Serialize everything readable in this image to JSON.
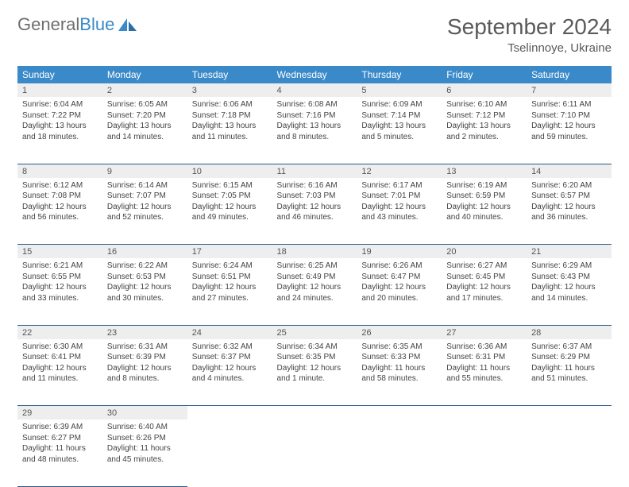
{
  "logo": {
    "text_gray": "General",
    "text_blue": "Blue"
  },
  "title": "September 2024",
  "location": "Tselinnoye, Ukraine",
  "day_headers": [
    "Sunday",
    "Monday",
    "Tuesday",
    "Wednesday",
    "Thursday",
    "Friday",
    "Saturday"
  ],
  "colors": {
    "header_bg": "#3a8ac9",
    "header_text": "#ffffff",
    "daynum_bg": "#eeeeee",
    "cell_border": "#2d5b86",
    "body_bg": "#ffffff",
    "text": "#444444"
  },
  "weeks": [
    [
      {
        "n": "1",
        "sunrise": "Sunrise: 6:04 AM",
        "sunset": "Sunset: 7:22 PM",
        "day1": "Daylight: 13 hours",
        "day2": "and 18 minutes."
      },
      {
        "n": "2",
        "sunrise": "Sunrise: 6:05 AM",
        "sunset": "Sunset: 7:20 PM",
        "day1": "Daylight: 13 hours",
        "day2": "and 14 minutes."
      },
      {
        "n": "3",
        "sunrise": "Sunrise: 6:06 AM",
        "sunset": "Sunset: 7:18 PM",
        "day1": "Daylight: 13 hours",
        "day2": "and 11 minutes."
      },
      {
        "n": "4",
        "sunrise": "Sunrise: 6:08 AM",
        "sunset": "Sunset: 7:16 PM",
        "day1": "Daylight: 13 hours",
        "day2": "and 8 minutes."
      },
      {
        "n": "5",
        "sunrise": "Sunrise: 6:09 AM",
        "sunset": "Sunset: 7:14 PM",
        "day1": "Daylight: 13 hours",
        "day2": "and 5 minutes."
      },
      {
        "n": "6",
        "sunrise": "Sunrise: 6:10 AM",
        "sunset": "Sunset: 7:12 PM",
        "day1": "Daylight: 13 hours",
        "day2": "and 2 minutes."
      },
      {
        "n": "7",
        "sunrise": "Sunrise: 6:11 AM",
        "sunset": "Sunset: 7:10 PM",
        "day1": "Daylight: 12 hours",
        "day2": "and 59 minutes."
      }
    ],
    [
      {
        "n": "8",
        "sunrise": "Sunrise: 6:12 AM",
        "sunset": "Sunset: 7:08 PM",
        "day1": "Daylight: 12 hours",
        "day2": "and 56 minutes."
      },
      {
        "n": "9",
        "sunrise": "Sunrise: 6:14 AM",
        "sunset": "Sunset: 7:07 PM",
        "day1": "Daylight: 12 hours",
        "day2": "and 52 minutes."
      },
      {
        "n": "10",
        "sunrise": "Sunrise: 6:15 AM",
        "sunset": "Sunset: 7:05 PM",
        "day1": "Daylight: 12 hours",
        "day2": "and 49 minutes."
      },
      {
        "n": "11",
        "sunrise": "Sunrise: 6:16 AM",
        "sunset": "Sunset: 7:03 PM",
        "day1": "Daylight: 12 hours",
        "day2": "and 46 minutes."
      },
      {
        "n": "12",
        "sunrise": "Sunrise: 6:17 AM",
        "sunset": "Sunset: 7:01 PM",
        "day1": "Daylight: 12 hours",
        "day2": "and 43 minutes."
      },
      {
        "n": "13",
        "sunrise": "Sunrise: 6:19 AM",
        "sunset": "Sunset: 6:59 PM",
        "day1": "Daylight: 12 hours",
        "day2": "and 40 minutes."
      },
      {
        "n": "14",
        "sunrise": "Sunrise: 6:20 AM",
        "sunset": "Sunset: 6:57 PM",
        "day1": "Daylight: 12 hours",
        "day2": "and 36 minutes."
      }
    ],
    [
      {
        "n": "15",
        "sunrise": "Sunrise: 6:21 AM",
        "sunset": "Sunset: 6:55 PM",
        "day1": "Daylight: 12 hours",
        "day2": "and 33 minutes."
      },
      {
        "n": "16",
        "sunrise": "Sunrise: 6:22 AM",
        "sunset": "Sunset: 6:53 PM",
        "day1": "Daylight: 12 hours",
        "day2": "and 30 minutes."
      },
      {
        "n": "17",
        "sunrise": "Sunrise: 6:24 AM",
        "sunset": "Sunset: 6:51 PM",
        "day1": "Daylight: 12 hours",
        "day2": "and 27 minutes."
      },
      {
        "n": "18",
        "sunrise": "Sunrise: 6:25 AM",
        "sunset": "Sunset: 6:49 PM",
        "day1": "Daylight: 12 hours",
        "day2": "and 24 minutes."
      },
      {
        "n": "19",
        "sunrise": "Sunrise: 6:26 AM",
        "sunset": "Sunset: 6:47 PM",
        "day1": "Daylight: 12 hours",
        "day2": "and 20 minutes."
      },
      {
        "n": "20",
        "sunrise": "Sunrise: 6:27 AM",
        "sunset": "Sunset: 6:45 PM",
        "day1": "Daylight: 12 hours",
        "day2": "and 17 minutes."
      },
      {
        "n": "21",
        "sunrise": "Sunrise: 6:29 AM",
        "sunset": "Sunset: 6:43 PM",
        "day1": "Daylight: 12 hours",
        "day2": "and 14 minutes."
      }
    ],
    [
      {
        "n": "22",
        "sunrise": "Sunrise: 6:30 AM",
        "sunset": "Sunset: 6:41 PM",
        "day1": "Daylight: 12 hours",
        "day2": "and 11 minutes."
      },
      {
        "n": "23",
        "sunrise": "Sunrise: 6:31 AM",
        "sunset": "Sunset: 6:39 PM",
        "day1": "Daylight: 12 hours",
        "day2": "and 8 minutes."
      },
      {
        "n": "24",
        "sunrise": "Sunrise: 6:32 AM",
        "sunset": "Sunset: 6:37 PM",
        "day1": "Daylight: 12 hours",
        "day2": "and 4 minutes."
      },
      {
        "n": "25",
        "sunrise": "Sunrise: 6:34 AM",
        "sunset": "Sunset: 6:35 PM",
        "day1": "Daylight: 12 hours",
        "day2": "and 1 minute."
      },
      {
        "n": "26",
        "sunrise": "Sunrise: 6:35 AM",
        "sunset": "Sunset: 6:33 PM",
        "day1": "Daylight: 11 hours",
        "day2": "and 58 minutes."
      },
      {
        "n": "27",
        "sunrise": "Sunrise: 6:36 AM",
        "sunset": "Sunset: 6:31 PM",
        "day1": "Daylight: 11 hours",
        "day2": "and 55 minutes."
      },
      {
        "n": "28",
        "sunrise": "Sunrise: 6:37 AM",
        "sunset": "Sunset: 6:29 PM",
        "day1": "Daylight: 11 hours",
        "day2": "and 51 minutes."
      }
    ],
    [
      {
        "n": "29",
        "sunrise": "Sunrise: 6:39 AM",
        "sunset": "Sunset: 6:27 PM",
        "day1": "Daylight: 11 hours",
        "day2": "and 48 minutes."
      },
      {
        "n": "30",
        "sunrise": "Sunrise: 6:40 AM",
        "sunset": "Sunset: 6:26 PM",
        "day1": "Daylight: 11 hours",
        "day2": "and 45 minutes."
      },
      null,
      null,
      null,
      null,
      null
    ]
  ]
}
